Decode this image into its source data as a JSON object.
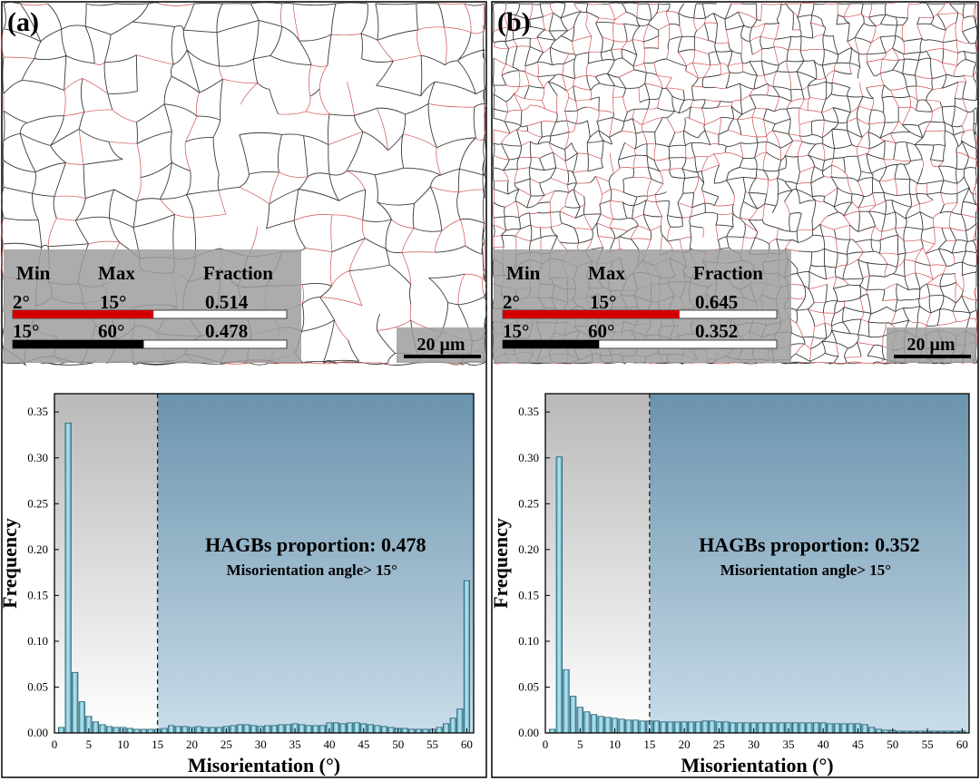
{
  "panels": [
    {
      "label": "(a)",
      "legend": {
        "headers": [
          "Min",
          "Max",
          "Fraction"
        ],
        "rows": [
          {
            "min": "2°",
            "max": "15°",
            "fraction": "0.514",
            "color": "#d40000",
            "fill_fraction": 0.514
          },
          {
            "min": "15°",
            "max": "60°",
            "fraction": "0.478",
            "color": "#000000",
            "fill_fraction": 0.478
          }
        ]
      },
      "scale_bar": "20 μm",
      "grain_density": "coarse"
    },
    {
      "label": "(b)",
      "legend": {
        "headers": [
          "Min",
          "Max",
          "Fraction"
        ],
        "rows": [
          {
            "min": "2°",
            "max": "15°",
            "fraction": "0.645",
            "color": "#d40000",
            "fill_fraction": 0.645
          },
          {
            "min": "15°",
            "max": "60°",
            "fraction": "0.352",
            "color": "#000000",
            "fill_fraction": 0.352
          }
        ]
      },
      "scale_bar": "20 μm",
      "grain_density": "fine"
    }
  ],
  "chart_data": [
    {
      "type": "bar",
      "xlabel": "Misorientation (°)",
      "ylabel": "Frequency",
      "xlim": [
        0,
        61
      ],
      "ylim": [
        0,
        0.37
      ],
      "xticks": [
        0,
        5,
        10,
        15,
        20,
        25,
        30,
        35,
        40,
        45,
        50,
        55,
        60
      ],
      "yticks": [
        0.0,
        0.05,
        0.1,
        0.15,
        0.2,
        0.25,
        0.3,
        0.35
      ],
      "threshold": 15,
      "annotation_title": "HAGBs proportion: 0.478",
      "annotation_sub": "Misorientation angle> 15°",
      "bin_width": 1,
      "x": [
        1,
        2,
        3,
        4,
        5,
        6,
        7,
        8,
        9,
        10,
        11,
        12,
        13,
        14,
        15,
        16,
        17,
        18,
        19,
        20,
        21,
        22,
        23,
        24,
        25,
        26,
        27,
        28,
        29,
        30,
        31,
        32,
        33,
        34,
        35,
        36,
        37,
        38,
        39,
        40,
        41,
        42,
        43,
        44,
        45,
        46,
        47,
        48,
        49,
        50,
        51,
        52,
        53,
        54,
        55,
        56,
        57,
        58,
        59,
        60
      ],
      "values": [
        0.006,
        0.338,
        0.066,
        0.034,
        0.018,
        0.012,
        0.009,
        0.007,
        0.006,
        0.006,
        0.005,
        0.004,
        0.004,
        0.004,
        0.004,
        0.005,
        0.008,
        0.007,
        0.007,
        0.006,
        0.007,
        0.006,
        0.006,
        0.006,
        0.007,
        0.008,
        0.009,
        0.009,
        0.008,
        0.007,
        0.008,
        0.008,
        0.009,
        0.009,
        0.01,
        0.009,
        0.008,
        0.008,
        0.008,
        0.011,
        0.011,
        0.01,
        0.011,
        0.011,
        0.01,
        0.009,
        0.008,
        0.007,
        0.006,
        0.005,
        0.005,
        0.004,
        0.004,
        0.004,
        0.004,
        0.006,
        0.01,
        0.016,
        0.026,
        0.166
      ]
    },
    {
      "type": "bar",
      "xlabel": "Misorientation (°)",
      "ylabel": "Frequency",
      "xlim": [
        0,
        61
      ],
      "ylim": [
        0,
        0.37
      ],
      "xticks": [
        0,
        5,
        10,
        15,
        20,
        25,
        30,
        35,
        40,
        45,
        50,
        55,
        60
      ],
      "yticks": [
        0.0,
        0.05,
        0.1,
        0.15,
        0.2,
        0.25,
        0.3,
        0.35
      ],
      "threshold": 15,
      "annotation_title": "HAGBs proportion: 0.352",
      "annotation_sub": "Misorientation angle> 15°",
      "bin_width": 1,
      "x": [
        1,
        2,
        3,
        4,
        5,
        6,
        7,
        8,
        9,
        10,
        11,
        12,
        13,
        14,
        15,
        16,
        17,
        18,
        19,
        20,
        21,
        22,
        23,
        24,
        25,
        26,
        27,
        28,
        29,
        30,
        31,
        32,
        33,
        34,
        35,
        36,
        37,
        38,
        39,
        40,
        41,
        42,
        43,
        44,
        45,
        46,
        47,
        48,
        49,
        50,
        51,
        52,
        53,
        54,
        55,
        56,
        57,
        58,
        59,
        60
      ],
      "values": [
        0.004,
        0.301,
        0.069,
        0.04,
        0.028,
        0.023,
        0.02,
        0.018,
        0.017,
        0.016,
        0.015,
        0.014,
        0.014,
        0.013,
        0.013,
        0.013,
        0.012,
        0.012,
        0.012,
        0.012,
        0.012,
        0.012,
        0.013,
        0.013,
        0.012,
        0.012,
        0.011,
        0.011,
        0.011,
        0.011,
        0.011,
        0.011,
        0.011,
        0.011,
        0.011,
        0.011,
        0.011,
        0.011,
        0.011,
        0.011,
        0.01,
        0.01,
        0.01,
        0.01,
        0.01,
        0.009,
        0.006,
        0.004,
        0.003,
        0.003,
        0.002,
        0.002,
        0.002,
        0.002,
        0.002,
        0.002,
        0.002,
        0.002,
        0.002,
        0.002
      ]
    }
  ]
}
